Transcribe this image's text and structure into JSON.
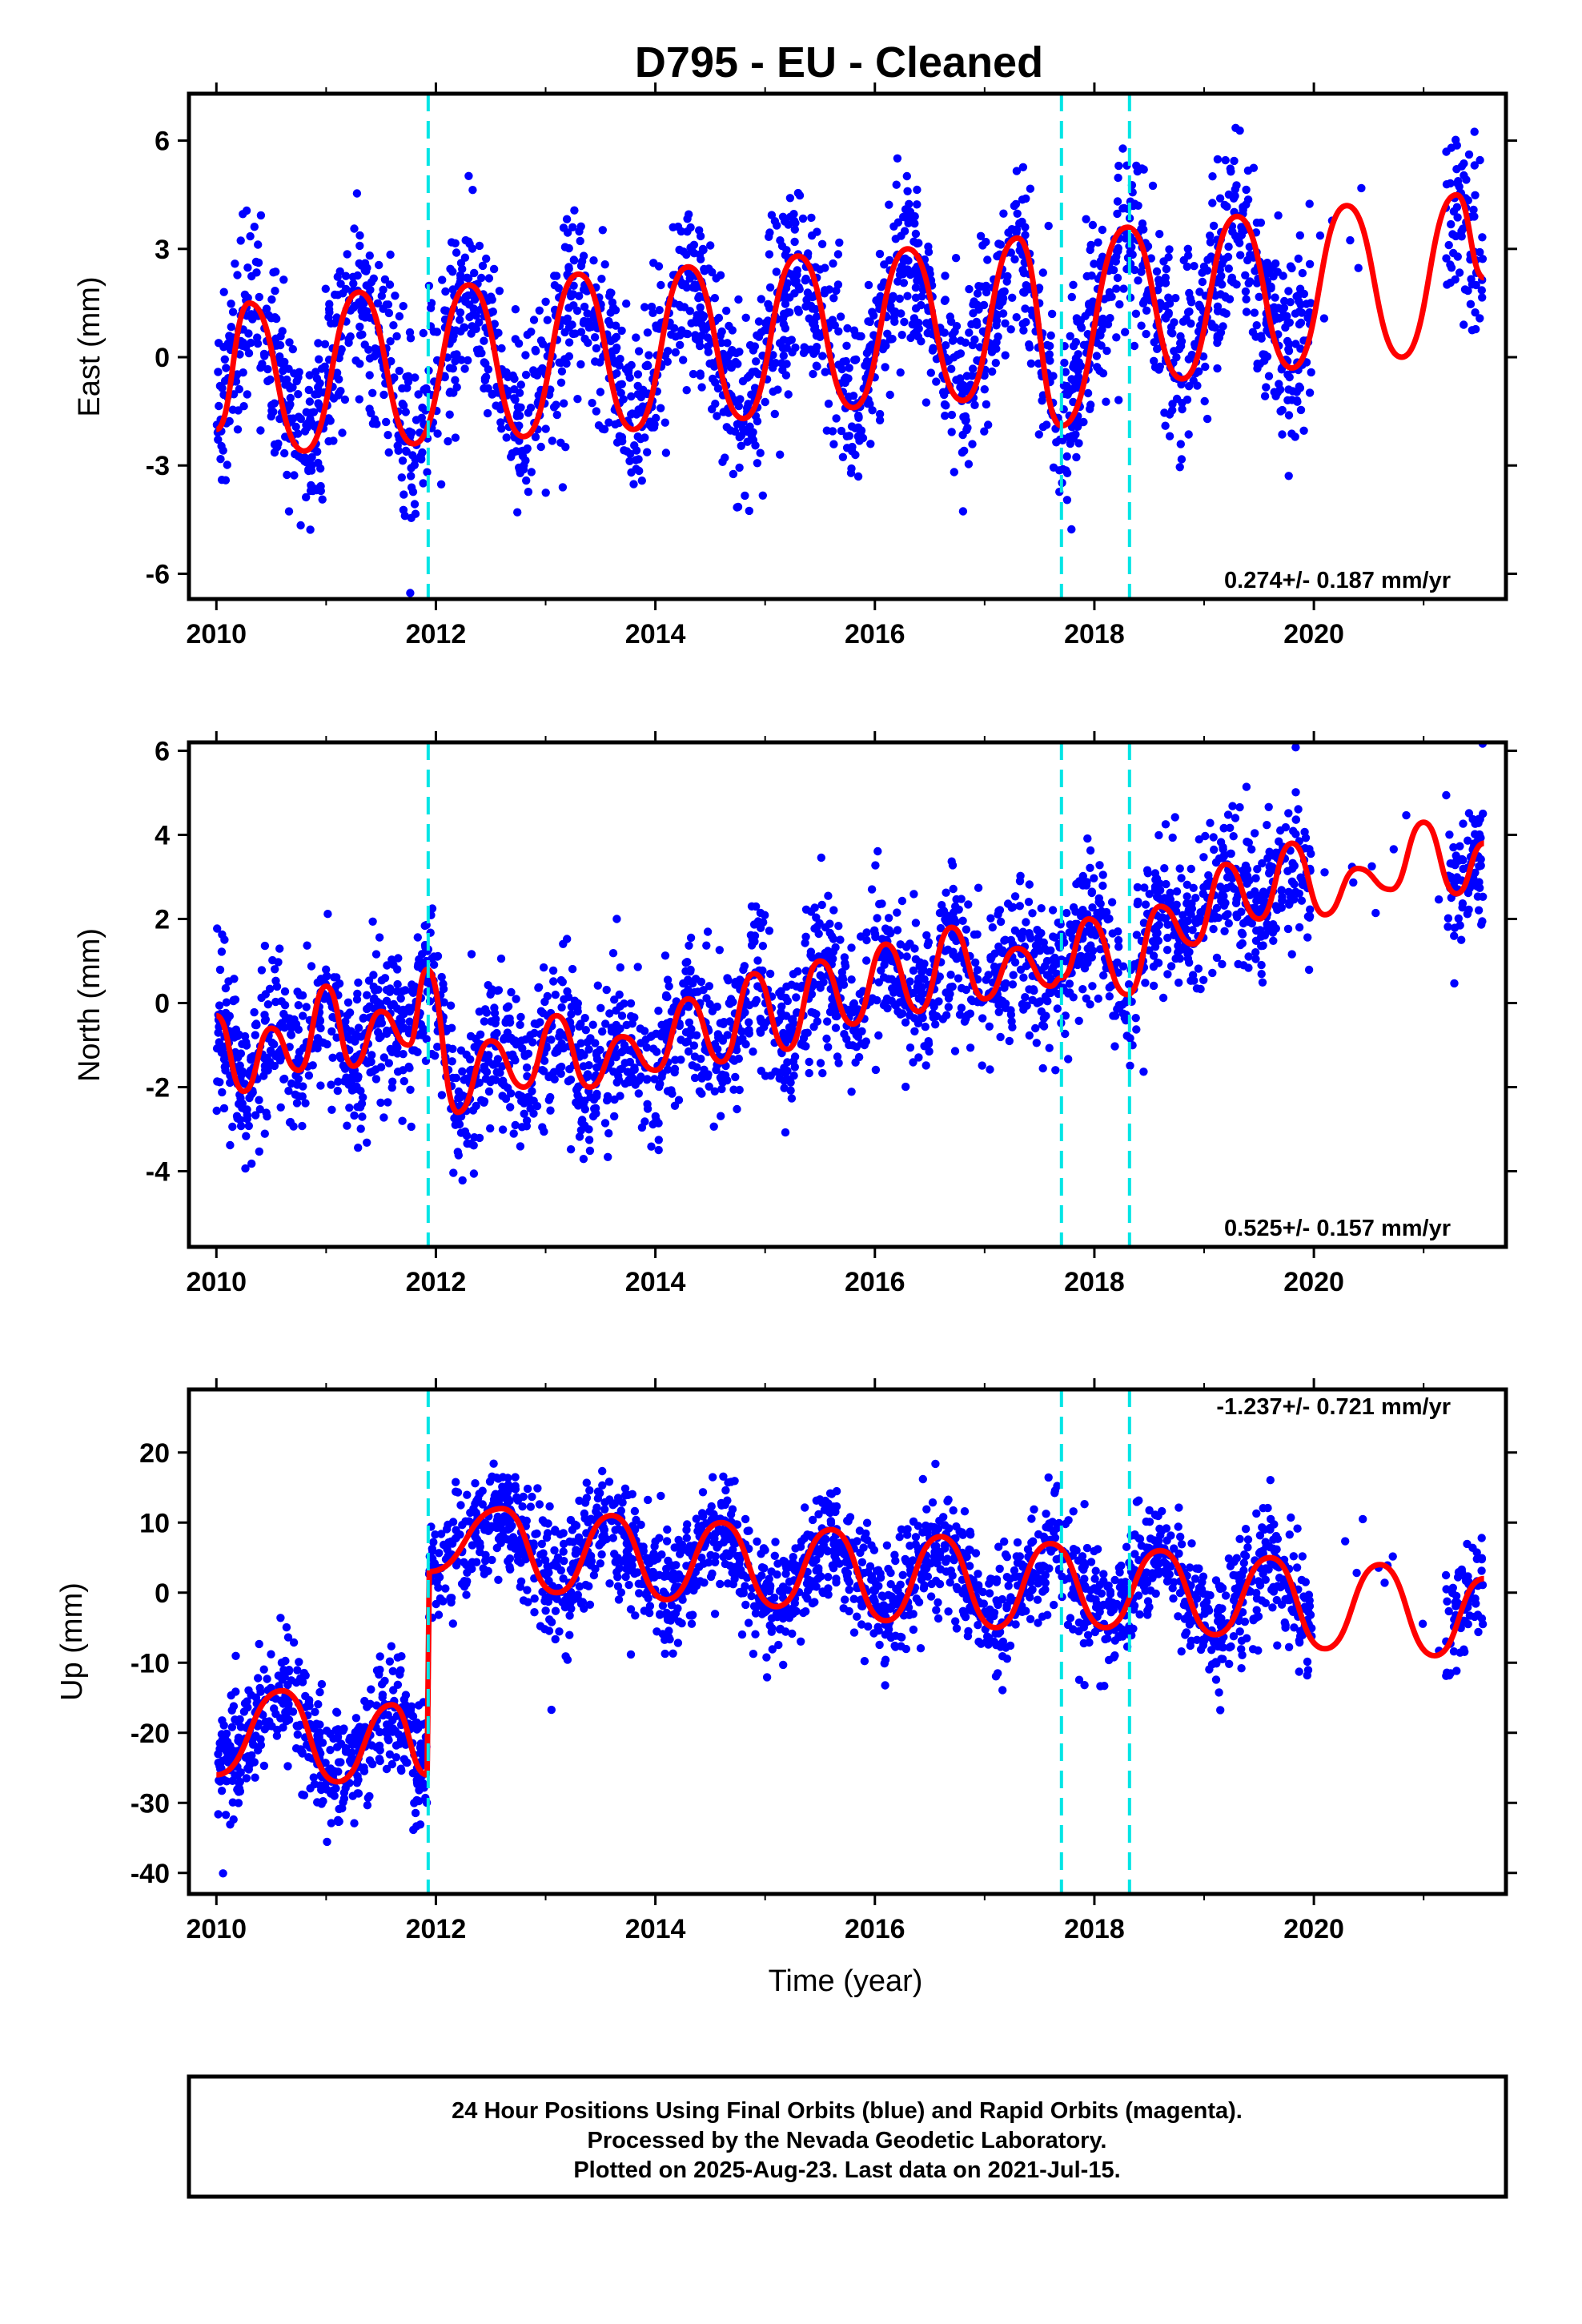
{
  "title": "D795  - EU - Cleaned",
  "xlabel": "Time (year)",
  "footer": {
    "line1": "24 Hour Positions Using Final Orbits (blue) and Rapid Orbits (magenta).",
    "line2": "Processed by the Nevada Geodetic Laboratory.",
    "line3": "Plotted on 2025-Aug-23. Last data on 2021-Jul-15."
  },
  "colors": {
    "data": "#0000ff",
    "model": "#ff0000",
    "breaks": "#00e5e5",
    "frame": "#000000"
  },
  "chart_data": [
    {
      "type": "scatter",
      "component": "east",
      "ylabel": "East (mm)",
      "rate_label": "0.274+/- 0.187 mm/yr",
      "xlim": [
        2009.75,
        2021.75
      ],
      "ylim": [
        -6.7,
        7.3
      ],
      "xticks": [
        2010,
        2012,
        2014,
        2016,
        2018,
        2020
      ],
      "yticks": [
        -6,
        -3,
        0,
        3,
        6
      ],
      "break_epochs": [
        2011.93,
        2017.7,
        2018.32
      ],
      "model": {
        "x": [
          2010.0,
          2010.3,
          2010.8,
          2011.3,
          2011.8,
          2012.3,
          2012.8,
          2013.3,
          2013.8,
          2014.3,
          2014.8,
          2015.3,
          2015.8,
          2016.3,
          2016.8,
          2017.3,
          2017.7,
          2018.3,
          2018.8,
          2019.3,
          2019.8,
          2020.3,
          2020.8,
          2021.3,
          2021.55
        ],
        "y": [
          -2.0,
          1.5,
          -2.6,
          1.8,
          -2.4,
          2.0,
          -2.2,
          2.3,
          -2.0,
          2.5,
          -1.7,
          2.8,
          -1.4,
          3.0,
          -1.2,
          3.3,
          -1.9,
          3.6,
          -0.6,
          3.9,
          -0.3,
          4.2,
          0.0,
          4.5,
          2.2
        ]
      },
      "points": {
        "n": 2800,
        "t_start": 2010.0,
        "t_end": 2021.54,
        "gap": [
          2019.98,
          2021.2
        ],
        "scatter": 1.3
      }
    },
    {
      "type": "scatter",
      "component": "north",
      "ylabel": "North (mm)",
      "rate_label": "0.525+/- 0.157 mm/yr",
      "xlim": [
        2009.75,
        2021.75
      ],
      "ylim": [
        -5.8,
        6.2
      ],
      "xticks": [
        2010,
        2012,
        2014,
        2016,
        2018,
        2020
      ],
      "yticks": [
        -4,
        -2,
        0,
        2,
        4,
        6
      ],
      "break_epochs": [
        2011.93,
        2017.7,
        2018.32
      ],
      "model": {
        "x": [
          2010.0,
          2010.25,
          2010.5,
          2010.75,
          2011.0,
          2011.25,
          2011.5,
          2011.75,
          2011.92,
          2012.2,
          2012.5,
          2012.8,
          2013.1,
          2013.4,
          2013.7,
          2014.0,
          2014.3,
          2014.6,
          2014.9,
          2015.2,
          2015.5,
          2015.8,
          2016.1,
          2016.4,
          2016.7,
          2017.0,
          2017.3,
          2017.6,
          2017.7,
          2017.95,
          2018.3,
          2018.6,
          2018.9,
          2019.2,
          2019.5,
          2019.8,
          2020.1,
          2020.4,
          2020.7,
          2021.0,
          2021.3,
          2021.55
        ],
        "y": [
          -0.3,
          -2.1,
          -0.6,
          -1.6,
          0.4,
          -1.5,
          -0.2,
          -1.0,
          0.8,
          -2.6,
          -0.9,
          -2.0,
          -0.3,
          -2.0,
          -0.8,
          -1.6,
          0.1,
          -1.4,
          0.7,
          -1.1,
          1.0,
          -0.5,
          1.4,
          -0.2,
          1.8,
          0.1,
          1.3,
          0.4,
          0.6,
          2.0,
          0.2,
          2.3,
          1.4,
          3.3,
          2.0,
          3.8,
          2.1,
          3.2,
          2.7,
          4.3,
          2.6,
          3.8
        ]
      },
      "points": {
        "n": 2800,
        "t_start": 2010.0,
        "t_end": 2021.54,
        "gap": [
          2019.98,
          2021.2
        ],
        "scatter": 0.9
      }
    },
    {
      "type": "scatter",
      "component": "up",
      "ylabel": "Up (mm)",
      "rate_label": "-1.237+/- 0.721 mm/yr",
      "xlim": [
        2009.75,
        2021.75
      ],
      "ylim": [
        -43,
        29
      ],
      "xticks": [
        2010,
        2012,
        2014,
        2016,
        2018,
        2020
      ],
      "yticks": [
        -40,
        -30,
        -20,
        -10,
        0,
        10,
        20
      ],
      "break_epochs": [
        2011.93,
        2017.7,
        2018.32
      ],
      "model": {
        "x": [
          2010.0,
          2010.6,
          2011.1,
          2011.6,
          2011.92,
          2011.94,
          2012.6,
          2013.1,
          2013.6,
          2014.1,
          2014.6,
          2015.1,
          2015.6,
          2016.1,
          2016.6,
          2017.1,
          2017.6,
          2018.1,
          2018.6,
          2019.1,
          2019.6,
          2020.1,
          2020.6,
          2021.1,
          2021.55
        ],
        "y": [
          -26,
          -14,
          -27,
          -16,
          -26,
          3,
          12,
          0,
          11,
          -1,
          10,
          -2,
          9,
          -4,
          8,
          -5,
          7,
          -5,
          6,
          -6,
          5,
          -8,
          4,
          -9,
          2
        ]
      },
      "points": {
        "n": 2800,
        "t_start": 2010.0,
        "t_end": 2021.54,
        "gap": [
          2019.98,
          2021.2
        ],
        "scatter": 4.2
      }
    }
  ]
}
